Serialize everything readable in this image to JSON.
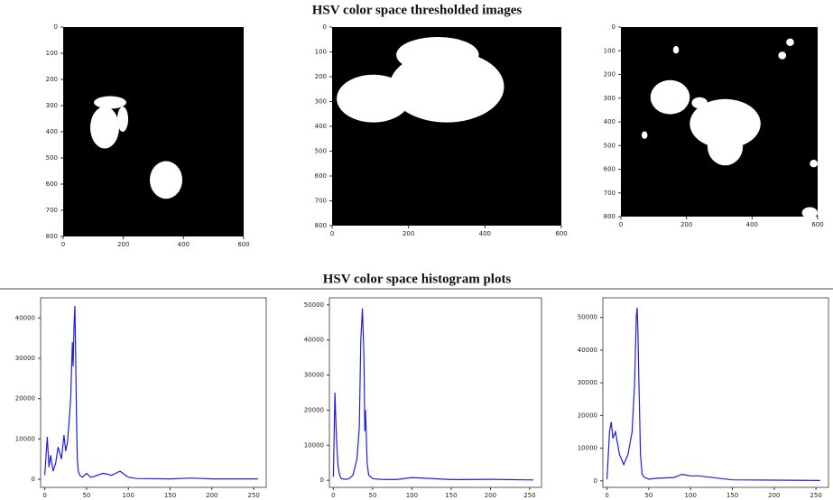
{
  "titles": [
    "HSV color space thresholded images",
    "HSV color space histogram plots"
  ],
  "chart_data": [
    {
      "type": "image",
      "xlim": [
        0,
        600
      ],
      "ylim": [
        0,
        800
      ],
      "y_inverted": true,
      "xticks": [
        0,
        200,
        400,
        600
      ],
      "yticks": [
        0,
        100,
        200,
        300,
        400,
        500,
        600,
        700,
        800
      ]
    },
    {
      "type": "image",
      "xlim": [
        0,
        600
      ],
      "ylim": [
        0,
        800
      ],
      "y_inverted": true,
      "xticks": [
        0,
        200,
        400,
        600
      ],
      "yticks": [
        0,
        100,
        200,
        300,
        400,
        500,
        600,
        700,
        800
      ]
    },
    {
      "type": "image",
      "xlim": [
        0,
        600
      ],
      "ylim": [
        0,
        800
      ],
      "y_inverted": true,
      "xticks": [
        0,
        200,
        400,
        600
      ],
      "yticks": [
        0,
        100,
        200,
        300,
        400,
        500,
        600,
        700,
        800
      ]
    },
    {
      "type": "line",
      "color": "#1f1fe0",
      "xlim": [
        -5,
        265
      ],
      "ylim": [
        -2000,
        45000
      ],
      "xticks": [
        0,
        50,
        100,
        150,
        200,
        250
      ],
      "yticks": [
        0,
        10000,
        20000,
        30000,
        40000
      ],
      "x": [
        0,
        3,
        5,
        7,
        10,
        13,
        16,
        20,
        23,
        25,
        27,
        29,
        31,
        33,
        34,
        35,
        36,
        37,
        38,
        39,
        40,
        42,
        45,
        50,
        55,
        60,
        70,
        80,
        90,
        100,
        110,
        150,
        175,
        200,
        255
      ],
      "values": [
        1000,
        10500,
        3000,
        6000,
        2000,
        4000,
        8000,
        5000,
        11000,
        7000,
        9000,
        14000,
        20000,
        34000,
        28000,
        38000,
        43000,
        30000,
        15000,
        5000,
        2000,
        1000,
        500,
        1500,
        500,
        800,
        1500,
        1000,
        2000,
        500,
        200,
        100,
        300,
        100,
        100
      ]
    },
    {
      "type": "line",
      "color": "#1f1fe0",
      "xlim": [
        -5,
        265
      ],
      "ylim": [
        -2000,
        52000
      ],
      "xticks": [
        0,
        50,
        100,
        150,
        200,
        250
      ],
      "yticks": [
        0,
        10000,
        20000,
        30000,
        40000,
        50000
      ],
      "x": [
        0,
        2,
        4,
        6,
        8,
        10,
        15,
        20,
        25,
        30,
        33,
        35,
        37,
        39,
        40,
        41,
        43,
        45,
        50,
        60,
        80,
        100,
        150,
        200,
        255
      ],
      "values": [
        1000,
        25000,
        12000,
        4000,
        1500,
        500,
        300,
        500,
        1500,
        6000,
        15000,
        40000,
        49000,
        35000,
        14000,
        20000,
        5000,
        1500,
        500,
        300,
        200,
        800,
        200,
        300,
        100
      ]
    },
    {
      "type": "line",
      "color": "#1f1fe0",
      "xlim": [
        -5,
        265
      ],
      "ylim": [
        -2000,
        56000
      ],
      "xticks": [
        0,
        50,
        100,
        150,
        200,
        250
      ],
      "yticks": [
        0,
        10000,
        20000,
        30000,
        40000,
        50000
      ],
      "x": [
        0,
        3,
        5,
        7,
        10,
        15,
        20,
        25,
        30,
        33,
        35,
        36,
        37,
        38,
        40,
        42,
        45,
        50,
        60,
        80,
        90,
        100,
        110,
        150,
        200,
        255
      ],
      "values": [
        500,
        15000,
        18000,
        13000,
        15000,
        8000,
        5000,
        8000,
        15000,
        30000,
        50000,
        53000,
        45000,
        32000,
        8000,
        2000,
        1000,
        500,
        800,
        1000,
        2000,
        1500,
        1500,
        300,
        200,
        100
      ]
    }
  ]
}
